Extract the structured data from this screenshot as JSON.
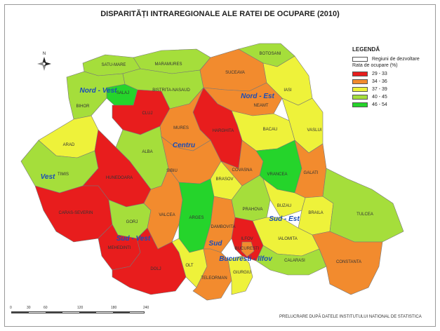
{
  "title": "DISPARITĂȚI INTRAREGIONALE ALE RATEI DE OCUPARE (2010)",
  "legend": {
    "title": "LEGENDĂ",
    "region_entry": "Regiuni de dezvoltare",
    "rate_title": "Rata de ocupare (%)",
    "classes": [
      {
        "label": "29 - 33",
        "color": "#e81d1d"
      },
      {
        "label": "34 - 36",
        "color": "#f28b2e"
      },
      {
        "label": "37 - 39",
        "color": "#eef23a"
      },
      {
        "label": "40 - 45",
        "color": "#a5de3b"
      },
      {
        "label": "46 - 54",
        "color": "#25d42b"
      }
    ]
  },
  "north_label": "N",
  "scale": {
    "ticks": [
      "0",
      "30",
      "60",
      "120",
      "180",
      "240"
    ],
    "unit": "km"
  },
  "credit": "PRELUCRARE DUPĂ DATELE INSTITUTULUI NATIONAL DE STATISTICA",
  "regions": [
    "Nord - Vest",
    "Nord - Est",
    "Centru",
    "Vest",
    "Sud - Est",
    "Sud - Vest",
    "Sud",
    "Bucuresti - Ilfov"
  ],
  "counties": [
    {
      "name": "SATU-MARE",
      "class": 3
    },
    {
      "name": "MARAMURES",
      "class": 3
    },
    {
      "name": "SALAJ",
      "class": 4
    },
    {
      "name": "BIHOR",
      "class": 3
    },
    {
      "name": "CLUJ",
      "class": 0
    },
    {
      "name": "BISTRITA-NASAUD",
      "class": 3
    },
    {
      "name": "SUCEAVA",
      "class": 1
    },
    {
      "name": "BOTOSANI",
      "class": 3
    },
    {
      "name": "IASI",
      "class": 2
    },
    {
      "name": "NEAMT",
      "class": 1
    },
    {
      "name": "VASLUI",
      "class": 2
    },
    {
      "name": "BACAU",
      "class": 2
    },
    {
      "name": "HARGHITA",
      "class": 0
    },
    {
      "name": "MURES",
      "class": 1
    },
    {
      "name": "ARAD",
      "class": 2
    },
    {
      "name": "ALBA",
      "class": 3
    },
    {
      "name": "TIMIS",
      "class": 3
    },
    {
      "name": "HUNEDOARA",
      "class": 0
    },
    {
      "name": "SIBIU",
      "class": 1
    },
    {
      "name": "BRASOV",
      "class": 2
    },
    {
      "name": "COVASNA",
      "class": 1
    },
    {
      "name": "VRANCEA",
      "class": 4
    },
    {
      "name": "GALATI",
      "class": 1
    },
    {
      "name": "CARAS-SEVERIN",
      "class": 0
    },
    {
      "name": "GORJ",
      "class": 3
    },
    {
      "name": "VALCEA",
      "class": 1
    },
    {
      "name": "ARGES",
      "class": 4
    },
    {
      "name": "DAMBOVITA",
      "class": 1
    },
    {
      "name": "PRAHOVA",
      "class": 3
    },
    {
      "name": "BUZAU",
      "class": 2
    },
    {
      "name": "BRAILA",
      "class": 2
    },
    {
      "name": "TULCEA",
      "class": 3
    },
    {
      "name": "MEHEDINTI",
      "class": 0
    },
    {
      "name": "DOLJ",
      "class": 0
    },
    {
      "name": "OLT",
      "class": 2
    },
    {
      "name": "TELEORMAN",
      "class": 1
    },
    {
      "name": "GIURGIU",
      "class": 2
    },
    {
      "name": "IALOMITA",
      "class": 2
    },
    {
      "name": "CALARASI",
      "class": 3
    },
    {
      "name": "CONSTANTA",
      "class": 1
    },
    {
      "name": "ILFOV",
      "class": 0
    },
    {
      "name": "BUCURESTI",
      "class": 1
    }
  ]
}
